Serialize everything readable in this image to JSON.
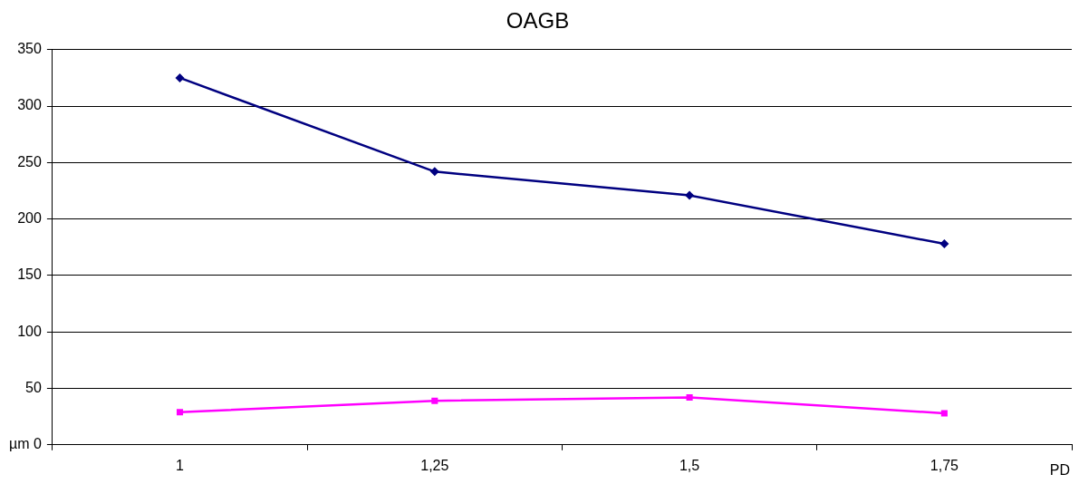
{
  "chart_data": {
    "type": "line",
    "title": "OAGB",
    "xlabel": "PD",
    "categories": [
      "1",
      "1,25",
      "1,5",
      "1,75"
    ],
    "series": [
      {
        "color": "#000080",
        "values": [
          325,
          242,
          221,
          178
        ],
        "marker": "diamond"
      },
      {
        "color": "#ff00ff",
        "values": [
          29,
          39,
          42,
          28
        ],
        "marker": "square"
      }
    ],
    "ylim": [
      0,
      350
    ],
    "yticks": [
      {
        "value": 0,
        "label": "µm 0"
      },
      50,
      100,
      150,
      200,
      250,
      300,
      350
    ],
    "grid": "y",
    "legend": false,
    "line_style": "solid"
  }
}
